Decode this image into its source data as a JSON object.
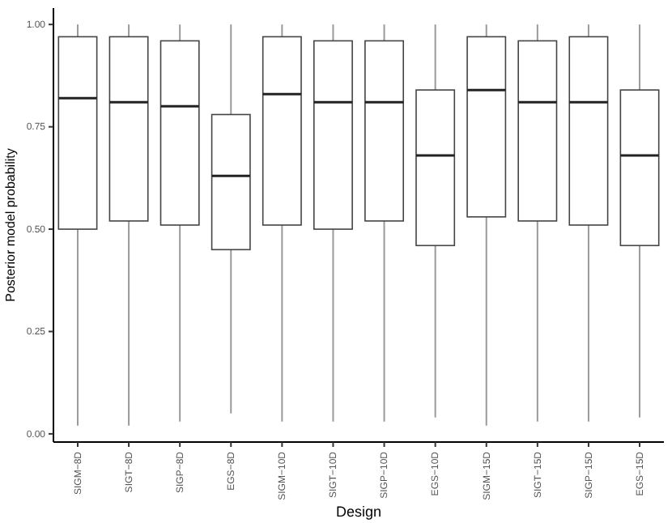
{
  "chart_data": {
    "type": "box",
    "xlabel": "Design",
    "ylabel": "Posterior model probability",
    "categories": [
      "SIGM−8D",
      "SIGT−8D",
      "SIGP−8D",
      "EGS−8D",
      "SIGM−10D",
      "SIGT−10D",
      "SIGP−10D",
      "EGS−10D",
      "SIGM−15D",
      "SIGT−15D",
      "SIGP−15D",
      "EGS−15D"
    ],
    "boxes": [
      {
        "low": 0.02,
        "q1": 0.5,
        "median": 0.82,
        "q3": 0.97,
        "high": 1
      },
      {
        "low": 0.02,
        "q1": 0.52,
        "median": 0.81,
        "q3": 0.97,
        "high": 1
      },
      {
        "low": 0.03,
        "q1": 0.51,
        "median": 0.8,
        "q3": 0.96,
        "high": 1
      },
      {
        "low": 0.05,
        "q1": 0.45,
        "median": 0.63,
        "q3": 0.78,
        "high": 1
      },
      {
        "low": 0.03,
        "q1": 0.51,
        "median": 0.83,
        "q3": 0.97,
        "high": 1
      },
      {
        "low": 0.03,
        "q1": 0.5,
        "median": 0.81,
        "q3": 0.96,
        "high": 1
      },
      {
        "low": 0.03,
        "q1": 0.52,
        "median": 0.81,
        "q3": 0.96,
        "high": 1
      },
      {
        "low": 0.04,
        "q1": 0.46,
        "median": 0.68,
        "q3": 0.84,
        "high": 1
      },
      {
        "low": 0.02,
        "q1": 0.53,
        "median": 0.84,
        "q3": 0.97,
        "high": 1
      },
      {
        "low": 0.03,
        "q1": 0.52,
        "median": 0.81,
        "q3": 0.96,
        "high": 1
      },
      {
        "low": 0.03,
        "q1": 0.51,
        "median": 0.81,
        "q3": 0.97,
        "high": 1
      },
      {
        "low": 0.04,
        "q1": 0.46,
        "median": 0.68,
        "q3": 0.84,
        "high": 1
      }
    ],
    "ylim": [
      -0.02,
      1.04
    ],
    "yticks": [
      {
        "value": 0,
        "label": "0.00"
      },
      {
        "value": 0.25,
        "label": "0.25"
      },
      {
        "value": 0.5,
        "label": "0.50"
      },
      {
        "value": 0.75,
        "label": "0.75"
      },
      {
        "value": 1,
        "label": "1.00"
      }
    ],
    "grid": false
  }
}
